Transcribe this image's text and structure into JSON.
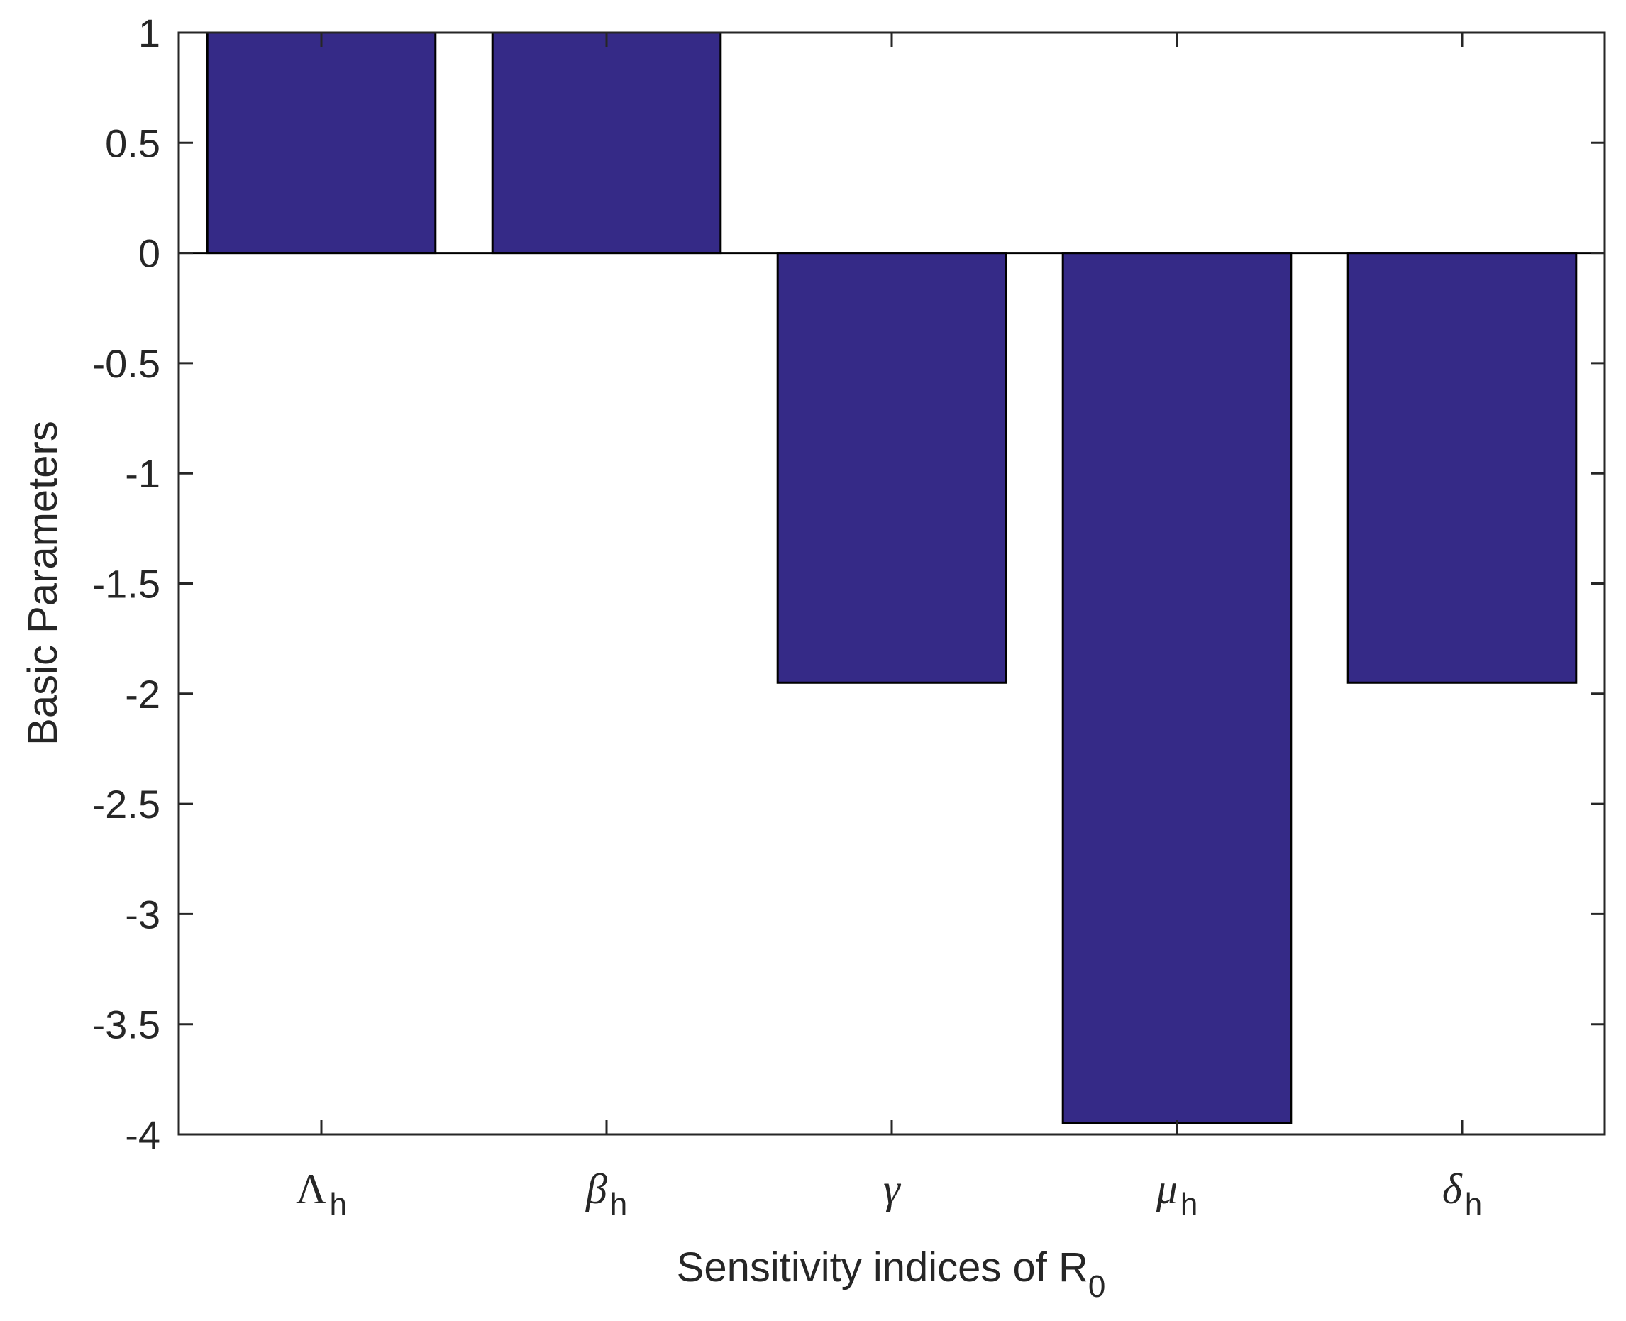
{
  "chart_data": {
    "type": "bar",
    "categories": [
      {
        "symbol": "Λ",
        "subscript": "h",
        "italic": false
      },
      {
        "symbol": "β",
        "subscript": "h",
        "italic": true
      },
      {
        "symbol": "γ",
        "subscript": "",
        "italic": true
      },
      {
        "symbol": "μ",
        "subscript": "h",
        "italic": true
      },
      {
        "symbol": "δ",
        "subscript": "h",
        "italic": true
      }
    ],
    "values": [
      1,
      1,
      -1.95,
      -3.95,
      -1.95
    ],
    "xlabel": {
      "text": "Sensitivity indices of R",
      "subscript": "0"
    },
    "ylabel": "Basic Parameters",
    "ylim": [
      -4,
      1
    ],
    "yticks": [
      "1",
      "0.5",
      "0",
      "-0.5",
      "-1",
      "-1.5",
      "-2",
      "-2.5",
      "-3",
      "-3.5",
      "-4"
    ],
    "ytick_values": [
      1,
      0.5,
      0,
      -0.5,
      -1,
      -1.5,
      -2,
      -2.5,
      -3,
      -3.5,
      -4
    ],
    "bar_color": "#352A87",
    "edge_color": "#000000",
    "grid": false,
    "legend": "none"
  }
}
